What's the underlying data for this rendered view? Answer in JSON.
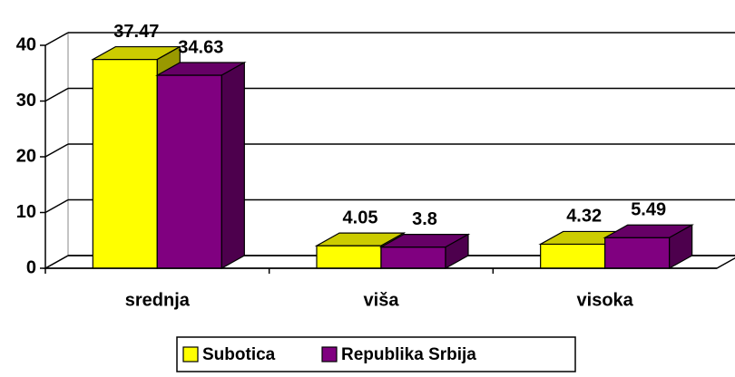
{
  "chart_data": {
    "type": "bar3d",
    "categories": [
      "srednja",
      "viša",
      "visoka"
    ],
    "series": [
      {
        "name": "Subotica",
        "color": "#ffff00",
        "values": [
          37.47,
          4.05,
          4.32
        ]
      },
      {
        "name": "Republika Srbija",
        "color": "#800080",
        "values": [
          34.63,
          3.8,
          5.49
        ]
      }
    ],
    "ylim": [
      0,
      40
    ],
    "yticks": [
      0,
      10,
      20,
      30,
      40
    ],
    "grid": true,
    "legend": "bottom"
  }
}
